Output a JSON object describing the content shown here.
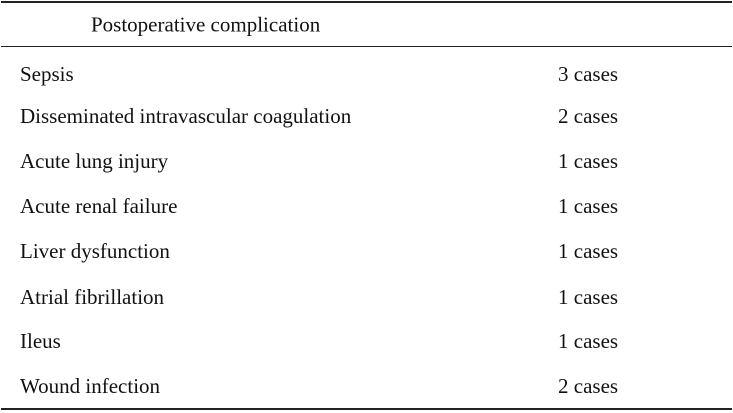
{
  "table": {
    "header": "Postoperative complication",
    "rows": [
      {
        "name": "Sepsis",
        "count": "3 cases"
      },
      {
        "name": "Disseminated intravascular coagulation",
        "count": "2 cases"
      },
      {
        "name": "Acute lung injury",
        "count": "1 cases"
      },
      {
        "name": "Acute renal failure",
        "count": "1 cases"
      },
      {
        "name": "Liver dysfunction",
        "count": "1 cases"
      },
      {
        "name": "Atrial fibrillation",
        "count": "1 cases"
      },
      {
        "name": "Ileus",
        "count": "1 cases"
      },
      {
        "name": "Wound infection",
        "count": "2 cases"
      }
    ]
  }
}
